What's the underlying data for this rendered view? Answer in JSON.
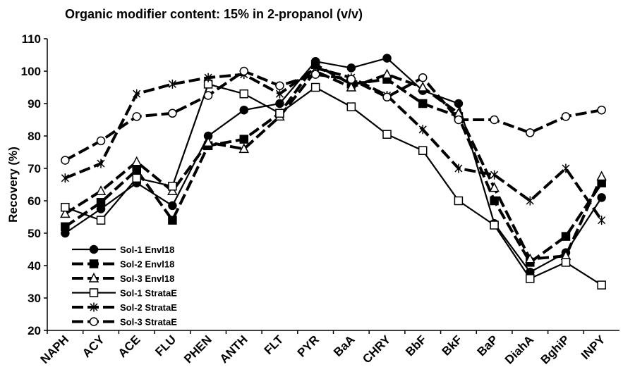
{
  "chart_data": {
    "type": "line",
    "title": "Organic modifier content: 15% in 2-propanol (v/v)",
    "y_label": "Recovery (%)",
    "categories": [
      "NAPH",
      "ACY",
      "ACE",
      "FLU",
      "PHEN",
      "ANTH",
      "FLT",
      "PYR",
      "BaA",
      "CHRY",
      "BbF",
      "BkF",
      "BaP",
      "DiahA",
      "BghiP",
      "INPY"
    ],
    "ylim": [
      20,
      110
    ],
    "yticks": [
      20,
      30,
      40,
      50,
      60,
      70,
      80,
      90,
      100,
      110
    ],
    "grid": false,
    "legend": "lower-left",
    "series": [
      {
        "name": "Sol-1 Envl18",
        "color": "#000000",
        "marker": "circle",
        "filled": true,
        "dash": "solid",
        "values": [
          50,
          57.5,
          65.5,
          58.5,
          80,
          88,
          90,
          103,
          101,
          104,
          94,
          90,
          53,
          38,
          44,
          61
        ]
      },
      {
        "name": "Sol-2 Envl18",
        "color": "#000000",
        "marker": "square",
        "filled": true,
        "dash": "dashed",
        "values": [
          52,
          59.5,
          69.5,
          54,
          77,
          79,
          87,
          102,
          96,
          97.5,
          90,
          86,
          60,
          41,
          49,
          65.5
        ]
      },
      {
        "name": "Sol-3 Envl18",
        "color": "#000000",
        "marker": "triangle",
        "filled": false,
        "dash": "dashed",
        "values": [
          56,
          63,
          72,
          63,
          78,
          76,
          86,
          100,
          95,
          99,
          95,
          87,
          64,
          42,
          43,
          67.5
        ]
      },
      {
        "name": "Sol-1 StrataE",
        "color": "#000000",
        "marker": "square",
        "filled": false,
        "dash": "solid",
        "values": [
          58,
          54,
          67,
          64.5,
          96,
          93,
          87,
          95,
          89,
          80.5,
          75.5,
          60,
          52.5,
          36,
          41,
          34
        ]
      },
      {
        "name": "Sol-2 StrataE",
        "color": "#000000",
        "marker": "star",
        "filled": false,
        "dash": "dashed",
        "values": [
          67,
          71.5,
          93,
          96,
          98,
          99,
          93,
          101,
          98,
          92.5,
          82,
          70,
          68,
          60,
          70,
          54
        ]
      },
      {
        "name": "Sol-3 StrataE",
        "color": "#000000",
        "marker": "circle",
        "filled": false,
        "dash": "dashed",
        "values": [
          72.5,
          78.5,
          86,
          87,
          92.5,
          100,
          95.5,
          99,
          97.5,
          92,
          98,
          85,
          85,
          81,
          86,
          88
        ]
      }
    ]
  }
}
